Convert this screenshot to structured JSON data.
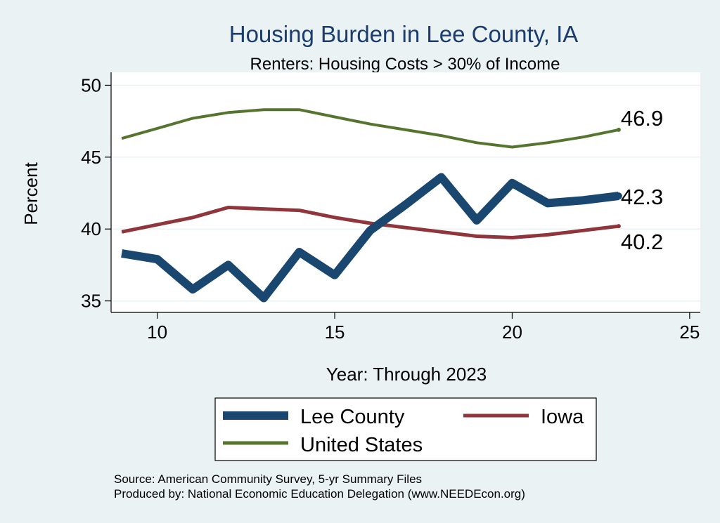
{
  "chart_data": {
    "type": "line",
    "title": "Housing Burden in Lee County, IA",
    "subtitle": "Renters: Housing Costs > 30% of Income",
    "xlabel": "Year: Through 2023",
    "ylabel": "Percent",
    "xlim": [
      8.7,
      25.3
    ],
    "ylim": [
      34.2,
      50.9
    ],
    "xticks": [
      10,
      15,
      20,
      25
    ],
    "yticks": [
      35,
      40,
      45,
      50
    ],
    "grid": "horizontal",
    "legend_position": "bottom",
    "x": [
      9,
      10,
      11,
      12,
      13,
      14,
      15,
      16,
      17,
      18,
      19,
      20,
      21,
      22,
      23
    ],
    "series": [
      {
        "name": "Lee County",
        "color": "#1a476f",
        "values": [
          38.3,
          37.9,
          35.8,
          37.5,
          35.2,
          38.4,
          36.8,
          39.9,
          41.7,
          43.6,
          40.6,
          43.2,
          41.8,
          42.0,
          42.3
        ],
        "end_label": "42.3"
      },
      {
        "name": "Iowa",
        "color": "#90353b",
        "values": [
          39.8,
          40.3,
          40.8,
          41.5,
          41.4,
          41.3,
          40.8,
          40.4,
          40.1,
          39.8,
          39.5,
          39.4,
          39.6,
          39.9,
          40.2
        ],
        "end_label": "40.2"
      },
      {
        "name": "United States",
        "color": "#55752f",
        "values": [
          46.3,
          47.0,
          47.7,
          48.1,
          48.3,
          48.3,
          47.8,
          47.3,
          46.9,
          46.5,
          46.0,
          45.7,
          46.0,
          46.4,
          46.9
        ],
        "end_label": "46.9"
      }
    ],
    "notes": [
      "Source: American Community Survey, 5-yr Summary Files",
      "Produced by: National Economic Education Delegation (www.NEEDEcon.org)"
    ]
  }
}
